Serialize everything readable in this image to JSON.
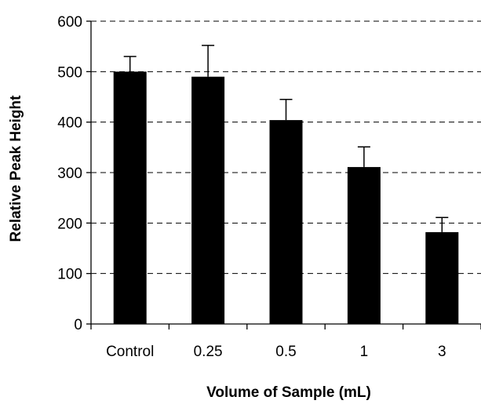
{
  "chart_data": {
    "type": "bar",
    "title": "",
    "xlabel": "Volume of Sample (mL)",
    "ylabel": "Relative Peak Height",
    "categories": [
      "Control",
      "0.25",
      "0.5",
      "1",
      "3"
    ],
    "values": [
      500,
      490,
      404,
      311,
      182
    ],
    "error_upper": [
      30,
      62,
      41,
      40,
      29
    ],
    "ylim": [
      0,
      600
    ],
    "yticks": [
      "0",
      "100",
      "200",
      "300",
      "400",
      "500",
      "600"
    ],
    "grid": "horizontal dashed",
    "legend": "none",
    "bar_color": "#000000"
  }
}
